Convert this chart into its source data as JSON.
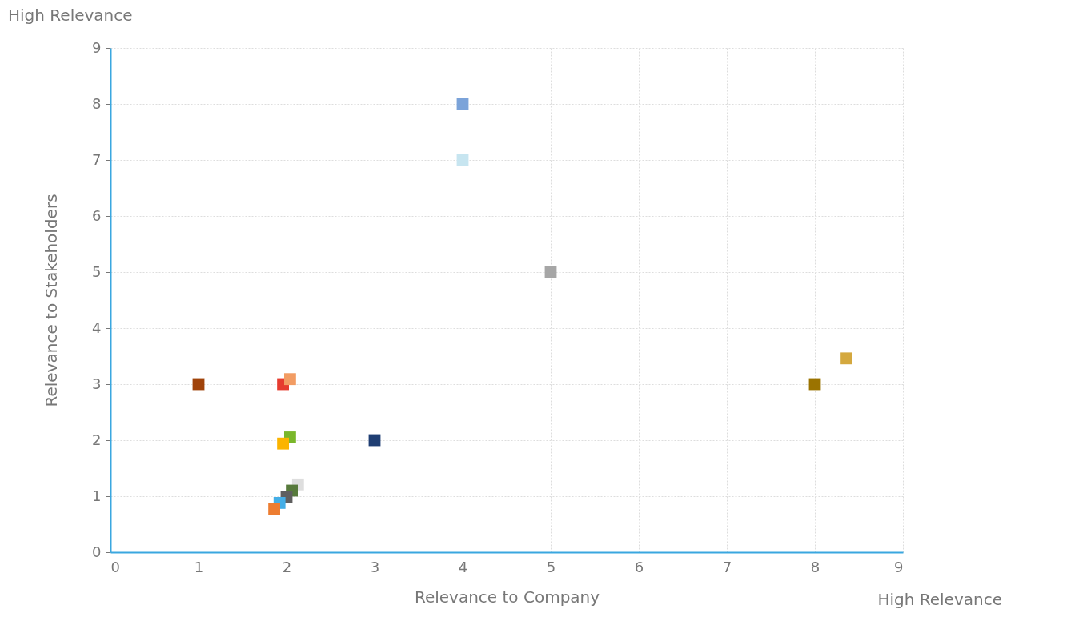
{
  "chart_data": {
    "type": "scatter",
    "xlabel": "Relevance to Company",
    "ylabel": "Relevance to Stakeholders",
    "annotations": [
      "High Relevance",
      "High Relevance"
    ],
    "x": [
      1,
      1.96,
      2.04,
      2.04,
      1.96,
      2.13,
      2.06,
      2.0,
      1.92,
      1.86,
      3,
      4,
      4,
      5,
      8,
      8.36
    ],
    "values": [
      3,
      3,
      3.09,
      2.05,
      1.94,
      1.21,
      1.1,
      0.99,
      0.88,
      0.77,
      2,
      8,
      7,
      5,
      3,
      3.46
    ],
    "colors": [
      "#a0430a",
      "#e63c2f",
      "#f29c63",
      "#7ab72a",
      "#fbb400",
      "#dedede",
      "#577a3c",
      "#5f5f5f",
      "#44aee6",
      "#ed7d31",
      "#1f3e73",
      "#7ba3d9",
      "#c7e5f0",
      "#a6a6a6",
      "#9b7300",
      "#d4a83e"
    ],
    "xlim": [
      0,
      9
    ],
    "ylim": [
      0,
      9
    ],
    "xticks": [
      0,
      1,
      2,
      3,
      4,
      5,
      6,
      7,
      8,
      9
    ],
    "yticks": [
      0,
      1,
      2,
      3,
      4,
      5,
      6,
      7,
      8,
      9
    ],
    "grid": true,
    "marker": "square"
  }
}
